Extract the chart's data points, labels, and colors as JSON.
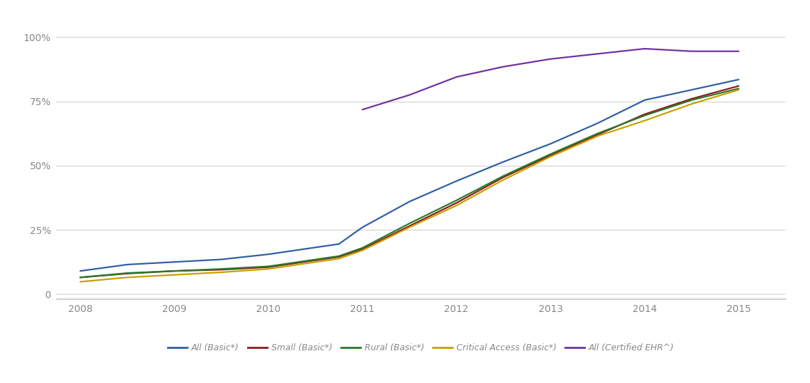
{
  "series": {
    "all_basic": {
      "label": "All (Basic*)",
      "color": "#2e5fa3",
      "years": [
        2008,
        2008.5,
        2009,
        2009.5,
        2010,
        2010.75,
        2011,
        2011.5,
        2012,
        2012.5,
        2013,
        2013.5,
        2014,
        2014.5,
        2015
      ],
      "values": [
        0.09,
        0.115,
        0.125,
        0.135,
        0.155,
        0.195,
        0.26,
        0.36,
        0.44,
        0.515,
        0.585,
        0.665,
        0.755,
        0.795,
        0.835
      ]
    },
    "small_basic": {
      "label": "Small (Basic*)",
      "color": "#8b1a1a",
      "years": [
        2008,
        2008.5,
        2009,
        2009.5,
        2010,
        2010.75,
        2011,
        2011.5,
        2012,
        2012.5,
        2013,
        2013.5,
        2014,
        2014.5,
        2015
      ],
      "values": [
        0.065,
        0.08,
        0.09,
        0.095,
        0.105,
        0.145,
        0.175,
        0.265,
        0.355,
        0.455,
        0.54,
        0.62,
        0.7,
        0.76,
        0.81
      ]
    },
    "rural_basic": {
      "label": "Rural (Basic*)",
      "color": "#2a7a2a",
      "years": [
        2008,
        2008.5,
        2009,
        2009.5,
        2010,
        2010.75,
        2011,
        2011.5,
        2012,
        2012.5,
        2013,
        2013.5,
        2014,
        2014.5,
        2015
      ],
      "values": [
        0.065,
        0.082,
        0.09,
        0.098,
        0.108,
        0.148,
        0.18,
        0.275,
        0.365,
        0.46,
        0.545,
        0.625,
        0.695,
        0.755,
        0.8
      ]
    },
    "critical_access_basic": {
      "label": "Critical Access (Basic*)",
      "color": "#c8a000",
      "years": [
        2008,
        2008.5,
        2009,
        2009.5,
        2010,
        2010.75,
        2011,
        2011.5,
        2012,
        2012.5,
        2013,
        2013.5,
        2014,
        2014.5,
        2015
      ],
      "values": [
        0.048,
        0.065,
        0.075,
        0.085,
        0.098,
        0.138,
        0.17,
        0.26,
        0.345,
        0.445,
        0.535,
        0.615,
        0.675,
        0.74,
        0.795
      ]
    },
    "all_certified": {
      "label": "All (Certified EHR^)",
      "color": "#7030a0",
      "years": [
        2011,
        2011.5,
        2012,
        2012.5,
        2013,
        2013.5,
        2014,
        2014.5,
        2015
      ],
      "values": [
        0.718,
        0.775,
        0.845,
        0.885,
        0.915,
        0.935,
        0.955,
        0.945,
        0.945
      ]
    }
  },
  "xlim": [
    2007.75,
    2015.5
  ],
  "ylim": [
    -0.018,
    1.07
  ],
  "xticks": [
    2008,
    2009,
    2010,
    2011,
    2012,
    2013,
    2014,
    2015
  ],
  "yticks": [
    0,
    0.25,
    0.5,
    0.75,
    1.0
  ],
  "ytick_labels": [
    "0",
    "25%",
    "50%",
    "75%",
    "100%"
  ],
  "background_color": "#ffffff",
  "grid_color": "#d0d0d0",
  "linewidth": 1.6,
  "legend_fontsize": 9.0,
  "tick_fontsize": 10,
  "tick_color": "#888888"
}
